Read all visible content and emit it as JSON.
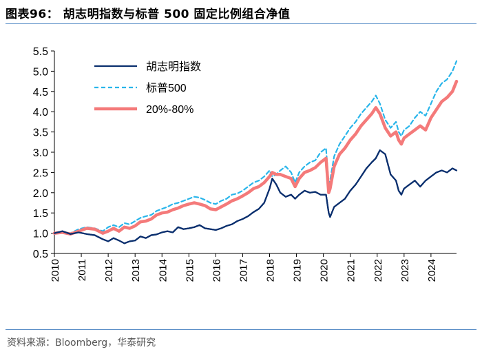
{
  "figure": {
    "title": "图表96：  胡志明指数与标普 500 固定比例组合净值",
    "source": "资料来源：Bloomberg，华泰研究"
  },
  "chart_data": {
    "type": "line",
    "title": "胡志明指数与标普 500 固定比例组合净值",
    "xlabel": "",
    "ylabel": "",
    "xlim": [
      2010.0,
      2024.95
    ],
    "ylim": [
      0.5,
      5.5
    ],
    "yticks": [
      0.5,
      1.0,
      1.5,
      2.0,
      2.5,
      3.0,
      3.5,
      4.0,
      4.5,
      5.0,
      5.5
    ],
    "xticks": [
      "2010",
      "2011",
      "2012",
      "2013",
      "2014",
      "2015",
      "2016",
      "2017",
      "2018",
      "2019",
      "2020",
      "2021",
      "2022",
      "2023",
      "2024"
    ],
    "legend_position": "top-left",
    "x": [
      2010.0,
      2010.3,
      2010.6,
      2010.9,
      2011.2,
      2011.5,
      2011.8,
      2012.0,
      2012.2,
      2012.4,
      2012.6,
      2012.8,
      2013.0,
      2013.2,
      2013.4,
      2013.6,
      2013.8,
      2014.0,
      2014.2,
      2014.4,
      2014.6,
      2014.8,
      2015.0,
      2015.2,
      2015.4,
      2015.6,
      2015.8,
      2016.0,
      2016.2,
      2016.4,
      2016.6,
      2016.8,
      2017.0,
      2017.2,
      2017.4,
      2017.6,
      2017.8,
      2018.0,
      2018.1,
      2018.25,
      2018.4,
      2018.6,
      2018.8,
      2018.95,
      2019.1,
      2019.3,
      2019.5,
      2019.7,
      2019.9,
      2020.1,
      2020.2,
      2020.25,
      2020.4,
      2020.6,
      2020.8,
      2021.0,
      2021.2,
      2021.4,
      2021.6,
      2021.8,
      2021.95,
      2022.1,
      2022.3,
      2022.5,
      2022.7,
      2022.8,
      2022.9,
      2023.0,
      2023.2,
      2023.4,
      2023.6,
      2023.8,
      2024.0,
      2024.2,
      2024.4,
      2024.6,
      2024.8,
      2024.95
    ],
    "series": [
      {
        "name": "胡志明指数",
        "color": "#0a2f6e",
        "dashed": false,
        "width": 2.2,
        "values": [
          1.0,
          1.05,
          0.98,
          1.02,
          0.98,
          0.95,
          0.85,
          0.8,
          0.88,
          0.82,
          0.75,
          0.8,
          0.82,
          0.92,
          0.88,
          0.95,
          0.97,
          1.02,
          1.05,
          1.02,
          1.15,
          1.1,
          1.12,
          1.15,
          1.2,
          1.12,
          1.1,
          1.08,
          1.12,
          1.18,
          1.22,
          1.3,
          1.35,
          1.42,
          1.52,
          1.6,
          1.75,
          2.1,
          2.35,
          2.2,
          2.0,
          1.9,
          1.95,
          1.85,
          1.95,
          2.05,
          2.0,
          2.02,
          1.95,
          1.95,
          1.5,
          1.4,
          1.65,
          1.75,
          1.85,
          2.05,
          2.2,
          2.4,
          2.6,
          2.75,
          2.85,
          3.05,
          2.95,
          2.45,
          2.3,
          2.05,
          1.95,
          2.1,
          2.2,
          2.3,
          2.15,
          2.3,
          2.4,
          2.5,
          2.55,
          2.5,
          2.6,
          2.55
        ]
      },
      {
        "name": "标普500",
        "color": "#29b5ea",
        "dashed": true,
        "width": 2.2,
        "values": [
          1.0,
          1.02,
          1.0,
          1.1,
          1.15,
          1.12,
          1.05,
          1.15,
          1.2,
          1.15,
          1.25,
          1.22,
          1.3,
          1.38,
          1.42,
          1.45,
          1.55,
          1.6,
          1.65,
          1.72,
          1.75,
          1.8,
          1.85,
          1.9,
          1.88,
          1.82,
          1.75,
          1.72,
          1.8,
          1.85,
          1.95,
          1.98,
          2.05,
          2.15,
          2.25,
          2.3,
          2.4,
          2.55,
          2.4,
          2.45,
          2.55,
          2.65,
          2.5,
          2.25,
          2.5,
          2.65,
          2.75,
          2.8,
          3.0,
          3.1,
          2.2,
          2.3,
          2.9,
          3.2,
          3.4,
          3.6,
          3.75,
          3.95,
          4.1,
          4.25,
          4.4,
          4.2,
          3.8,
          3.6,
          3.75,
          3.5,
          3.4,
          3.55,
          3.65,
          3.85,
          4.0,
          3.9,
          4.2,
          4.5,
          4.7,
          4.8,
          5.0,
          5.25
        ]
      },
      {
        "name": "20%-80%",
        "color": "#f47a7a",
        "dashed": false,
        "width": 4.5,
        "values": [
          1.0,
          1.02,
          0.98,
          1.05,
          1.12,
          1.1,
          1.0,
          1.05,
          1.12,
          1.05,
          1.15,
          1.12,
          1.18,
          1.28,
          1.3,
          1.35,
          1.45,
          1.5,
          1.52,
          1.58,
          1.62,
          1.68,
          1.72,
          1.75,
          1.72,
          1.68,
          1.6,
          1.58,
          1.65,
          1.72,
          1.8,
          1.85,
          1.92,
          2.0,
          2.1,
          2.15,
          2.25,
          2.4,
          2.5,
          2.45,
          2.45,
          2.4,
          2.35,
          2.15,
          2.35,
          2.5,
          2.55,
          2.62,
          2.75,
          2.85,
          2.0,
          2.1,
          2.65,
          2.95,
          3.1,
          3.3,
          3.45,
          3.65,
          3.8,
          3.95,
          4.1,
          3.95,
          3.6,
          3.4,
          3.5,
          3.3,
          3.2,
          3.35,
          3.45,
          3.55,
          3.65,
          3.55,
          3.85,
          4.05,
          4.25,
          4.35,
          4.5,
          4.75
        ]
      }
    ]
  }
}
